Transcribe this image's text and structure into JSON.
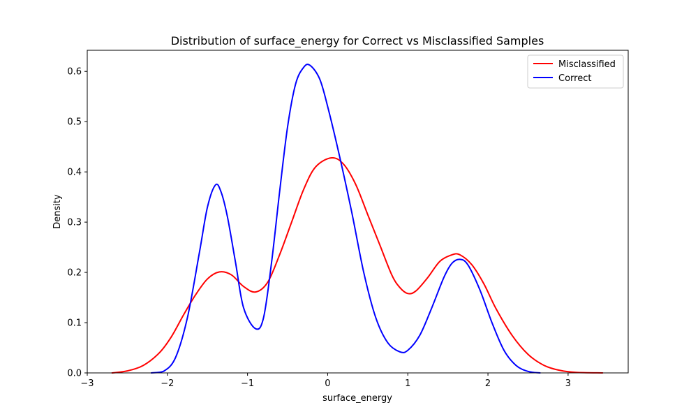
{
  "chart_data": {
    "type": "line",
    "title": "Distribution of surface_energy for Correct vs Misclassified Samples",
    "xlabel": "surface_energy",
    "ylabel": "Density",
    "xlim": [
      -3,
      3.75
    ],
    "ylim": [
      0,
      0.642
    ],
    "xticks": [
      -3,
      -2,
      -1,
      0,
      1,
      2,
      3
    ],
    "xtick_labels": [
      "−3",
      "−2",
      "−1",
      "0",
      "1",
      "2",
      "3"
    ],
    "yticks": [
      0.0,
      0.1,
      0.2,
      0.3,
      0.4,
      0.5,
      0.6
    ],
    "ytick_labels": [
      "0.0",
      "0.1",
      "0.2",
      "0.3",
      "0.4",
      "0.5",
      "0.6"
    ],
    "grid": false,
    "legend_position": "top-right",
    "series": [
      {
        "name": "Misclassified",
        "color": "#ff0000",
        "points": [
          [
            -2.69,
            0.0
          ],
          [
            -2.5,
            0.004
          ],
          [
            -2.3,
            0.015
          ],
          [
            -2.1,
            0.04
          ],
          [
            -1.95,
            0.072
          ],
          [
            -1.8,
            0.115
          ],
          [
            -1.65,
            0.155
          ],
          [
            -1.5,
            0.187
          ],
          [
            -1.35,
            0.201
          ],
          [
            -1.2,
            0.195
          ],
          [
            -1.05,
            0.172
          ],
          [
            -0.9,
            0.161
          ],
          [
            -0.75,
            0.18
          ],
          [
            -0.6,
            0.235
          ],
          [
            -0.45,
            0.3
          ],
          [
            -0.3,
            0.365
          ],
          [
            -0.15,
            0.41
          ],
          [
            0.05,
            0.428
          ],
          [
            0.2,
            0.415
          ],
          [
            0.35,
            0.375
          ],
          [
            0.5,
            0.315
          ],
          [
            0.65,
            0.255
          ],
          [
            0.8,
            0.195
          ],
          [
            0.9,
            0.17
          ],
          [
            1.0,
            0.158
          ],
          [
            1.1,
            0.163
          ],
          [
            1.25,
            0.19
          ],
          [
            1.4,
            0.222
          ],
          [
            1.55,
            0.235
          ],
          [
            1.65,
            0.235
          ],
          [
            1.8,
            0.215
          ],
          [
            1.95,
            0.177
          ],
          [
            2.1,
            0.128
          ],
          [
            2.3,
            0.075
          ],
          [
            2.5,
            0.037
          ],
          [
            2.7,
            0.015
          ],
          [
            2.9,
            0.005
          ],
          [
            3.1,
            0.001
          ],
          [
            3.43,
            0.0
          ]
        ]
      },
      {
        "name": "Correct",
        "color": "#0000ff",
        "points": [
          [
            -2.2,
            0.0
          ],
          [
            -2.05,
            0.003
          ],
          [
            -1.9,
            0.03
          ],
          [
            -1.75,
            0.11
          ],
          [
            -1.6,
            0.24
          ],
          [
            -1.5,
            0.33
          ],
          [
            -1.4,
            0.374
          ],
          [
            -1.33,
            0.36
          ],
          [
            -1.25,
            0.31
          ],
          [
            -1.15,
            0.22
          ],
          [
            -1.05,
            0.13
          ],
          [
            -0.9,
            0.088
          ],
          [
            -0.8,
            0.11
          ],
          [
            -0.7,
            0.22
          ],
          [
            -0.6,
            0.36
          ],
          [
            -0.5,
            0.49
          ],
          [
            -0.4,
            0.575
          ],
          [
            -0.3,
            0.608
          ],
          [
            -0.22,
            0.612
          ],
          [
            -0.1,
            0.585
          ],
          [
            0.0,
            0.53
          ],
          [
            0.15,
            0.43
          ],
          [
            0.3,
            0.32
          ],
          [
            0.45,
            0.2
          ],
          [
            0.6,
            0.11
          ],
          [
            0.75,
            0.06
          ],
          [
            0.9,
            0.042
          ],
          [
            1.0,
            0.045
          ],
          [
            1.15,
            0.075
          ],
          [
            1.3,
            0.13
          ],
          [
            1.45,
            0.19
          ],
          [
            1.55,
            0.218
          ],
          [
            1.65,
            0.226
          ],
          [
            1.75,
            0.215
          ],
          [
            1.9,
            0.165
          ],
          [
            2.05,
            0.1
          ],
          [
            2.2,
            0.045
          ],
          [
            2.35,
            0.015
          ],
          [
            2.5,
            0.003
          ],
          [
            2.65,
            0.0
          ]
        ]
      }
    ]
  }
}
